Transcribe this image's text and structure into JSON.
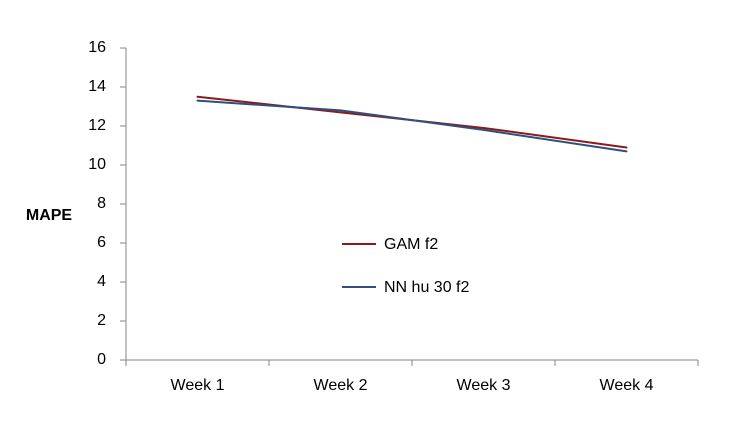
{
  "chart_data": {
    "type": "line",
    "title": "",
    "xlabel": "",
    "ylabel": "MAPE",
    "categories": [
      "Week 1",
      "Week 2",
      "Week 3",
      "Week 4"
    ],
    "series": [
      {
        "name": "GAM f2",
        "values": [
          13.5,
          12.7,
          11.9,
          10.9
        ],
        "color": "#8B1A1A"
      },
      {
        "name": "NN hu 30 f2",
        "values": [
          13.3,
          12.8,
          11.8,
          10.7
        ],
        "color": "#2F4F7F"
      }
    ],
    "ylim": [
      0,
      16
    ],
    "yticks": [
      0,
      2,
      4,
      6,
      8,
      10,
      12,
      14,
      16
    ],
    "grid": false,
    "legend_position": "center",
    "axis_color": "#868686"
  }
}
